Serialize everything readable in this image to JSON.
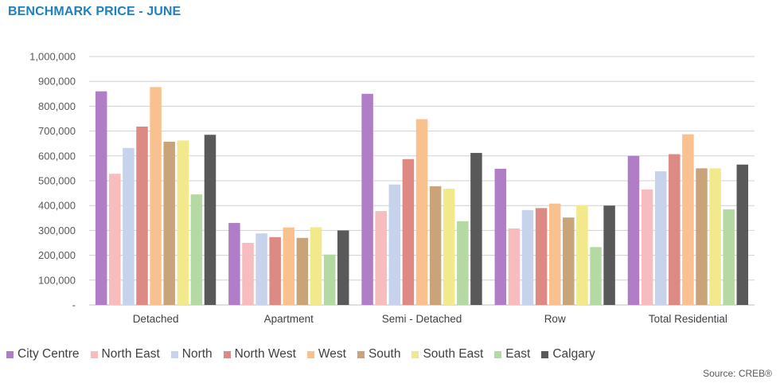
{
  "header": {
    "title": "BENCHMARK PRICE -  JUNE"
  },
  "footer": {
    "source": "Source: CREB®"
  },
  "chart_data": {
    "type": "bar",
    "ylim": [
      0,
      1000000
    ],
    "yticks": [
      {
        "value": 0,
        "label": "-"
      },
      {
        "value": 100000,
        "label": "100,000"
      },
      {
        "value": 200000,
        "label": "200,000"
      },
      {
        "value": 300000,
        "label": "300,000"
      },
      {
        "value": 400000,
        "label": "400,000"
      },
      {
        "value": 500000,
        "label": "500,000"
      },
      {
        "value": 600000,
        "label": "600,000"
      },
      {
        "value": 700000,
        "label": "700,000"
      },
      {
        "value": 800000,
        "label": "800,000"
      },
      {
        "value": 900000,
        "label": "900,000"
      },
      {
        "value": 1000000,
        "label": "1,000,000"
      }
    ],
    "grid": true,
    "legend_position": "bottom",
    "categories": [
      "Detached",
      "Apartment",
      "Semi - Detached",
      "Row",
      "Total Residential"
    ],
    "series": [
      {
        "name": "City Centre",
        "color": "#b07ec6",
        "values": [
          860000,
          330000,
          850000,
          548000,
          600000
        ]
      },
      {
        "name": "North East",
        "color": "#f7bcbe",
        "values": [
          528000,
          250000,
          378000,
          308000,
          465000
        ]
      },
      {
        "name": "North",
        "color": "#c7d3ea",
        "values": [
          632000,
          288000,
          485000,
          382000,
          538000
        ]
      },
      {
        "name": "North West",
        "color": "#dd8a84",
        "values": [
          718000,
          273000,
          587000,
          390000,
          607000
        ]
      },
      {
        "name": "West",
        "color": "#f9c090",
        "values": [
          877000,
          312000,
          748000,
          408000,
          687000
        ]
      },
      {
        "name": "South",
        "color": "#c9a47a",
        "values": [
          657000,
          270000,
          478000,
          352000,
          550000
        ]
      },
      {
        "name": "South East",
        "color": "#f2e88c",
        "values": [
          662000,
          313000,
          468000,
          402000,
          550000
        ]
      },
      {
        "name": "East",
        "color": "#b5d9a3",
        "values": [
          445000,
          203000,
          337000,
          233000,
          385000
        ]
      },
      {
        "name": "Calgary",
        "color": "#595959",
        "values": [
          685000,
          300000,
          612000,
          400000,
          565000
        ]
      }
    ]
  }
}
